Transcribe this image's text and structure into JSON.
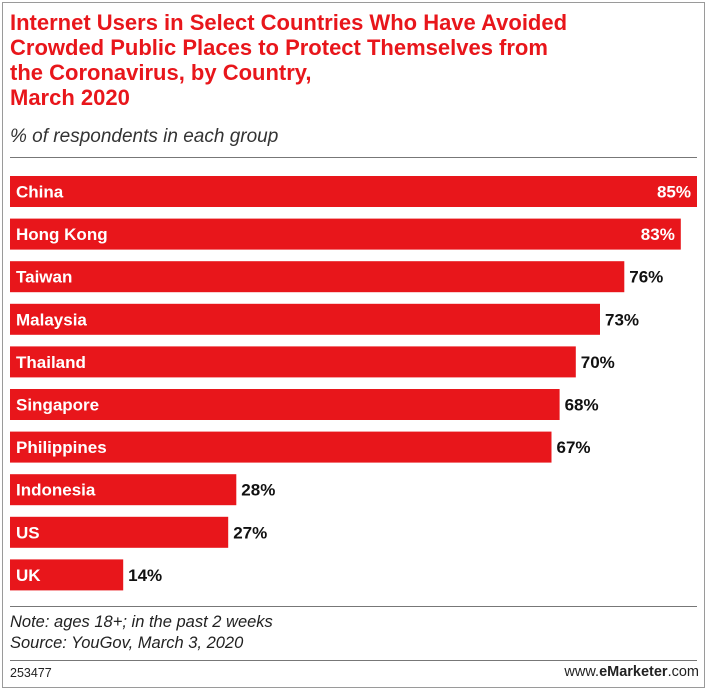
{
  "header": {
    "title_lines": [
      "Internet Users in Select Countries Who Have Avoided",
      "Crowded Public Places to Protect Themselves from",
      "the Coronavirus, by Country,",
      "March 2020"
    ],
    "subtitle": "% of respondents in each group"
  },
  "chart_data": {
    "type": "bar",
    "orientation": "horizontal",
    "title": "Internet Users in Select Countries Who Have Avoided Crowded Public Places to Protect Themselves from the Coronavirus, by Country, March 2020",
    "subtitle": "% of respondents in each group",
    "categories": [
      "China",
      "Hong Kong",
      "Taiwan",
      "Malaysia",
      "Thailand",
      "Singapore",
      "Philippines",
      "Indonesia",
      "US",
      "UK"
    ],
    "values": [
      85,
      83,
      76,
      73,
      70,
      68,
      67,
      28,
      27,
      14
    ],
    "data_labels": [
      "85%",
      "83%",
      "76%",
      "73%",
      "70%",
      "68%",
      "67%",
      "28%",
      "27%",
      "14%"
    ],
    "xlim": [
      0,
      85
    ],
    "grid": false,
    "legend": "none",
    "bar_color": "#e8161b"
  },
  "footer": {
    "note": "Note: ages 18+; in the past 2 weeks",
    "source": "Source: YouGov, March 3, 2020",
    "chart_id": "253477",
    "brand_prefix": "www.",
    "brand_bold": "eMarketer",
    "brand_suffix": ".com"
  }
}
